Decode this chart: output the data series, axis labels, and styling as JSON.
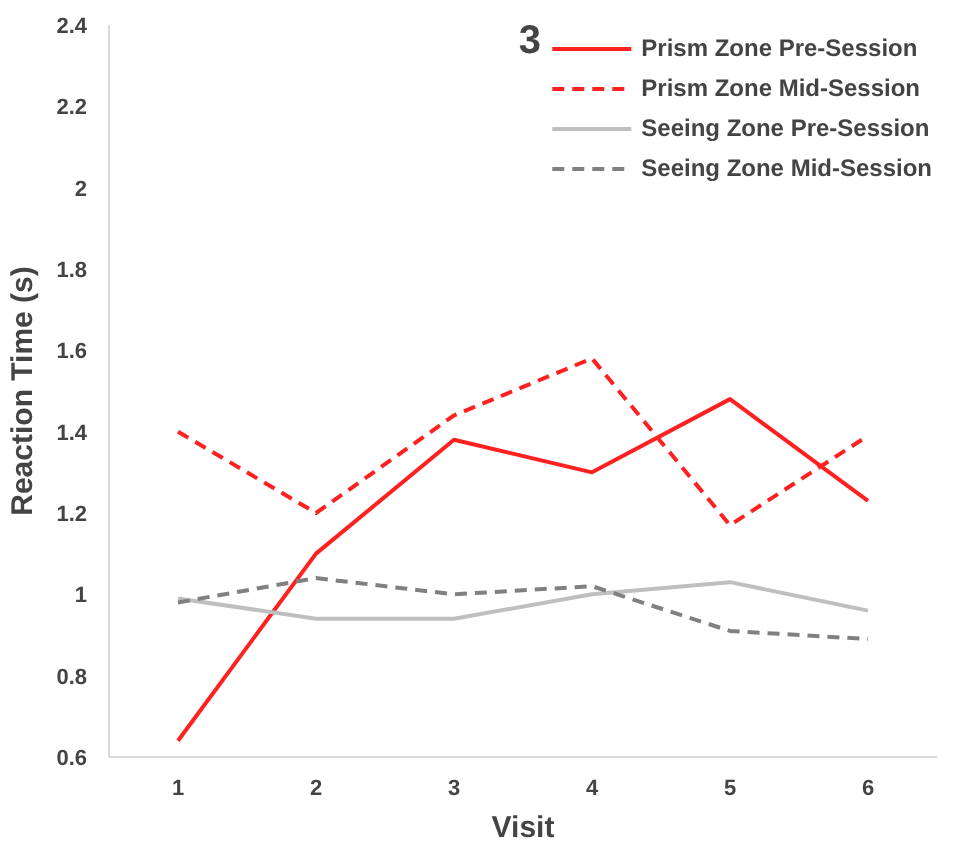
{
  "chart_data": {
    "type": "line",
    "xlabel": "Visit",
    "ylabel": "Reaction Time (s)",
    "annotations": [
      "3"
    ],
    "categories": [
      "1",
      "2",
      "3",
      "4",
      "5",
      "6"
    ],
    "series": [
      {
        "name": "Prism Zone Pre-Session",
        "color": "#ff2020",
        "line_style": "solid",
        "values": [
          0.64,
          1.1,
          1.38,
          1.3,
          1.48,
          1.23
        ]
      },
      {
        "name": "Prism Zone Mid-Session",
        "color": "#ff2020",
        "line_style": "dashed",
        "values": [
          1.4,
          1.2,
          1.44,
          1.58,
          1.17,
          1.39
        ]
      },
      {
        "name": "Seeing Zone Pre-Session",
        "color": "#bfbfbf",
        "line_style": "solid",
        "values": [
          0.99,
          0.94,
          0.94,
          1.0,
          1.03,
          0.96
        ]
      },
      {
        "name": "Seeing Zone Mid-Session",
        "color": "#808080",
        "line_style": "dashed",
        "values": [
          0.98,
          1.04,
          1.0,
          1.02,
          0.91,
          0.89
        ]
      }
    ],
    "ylim": [
      0.6,
      2.4
    ],
    "yticks": [
      0.6,
      0.8,
      1,
      1.2,
      1.4,
      1.6,
      1.8,
      2,
      2.2,
      2.4
    ],
    "grid": false,
    "legend": "top right",
    "marker": "none"
  }
}
